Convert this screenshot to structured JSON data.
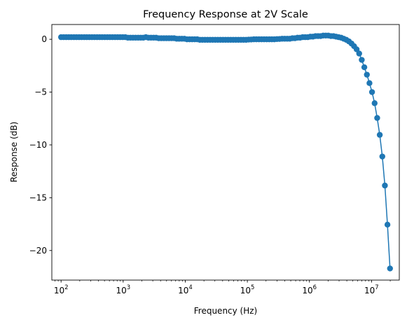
{
  "chart_data": {
    "type": "line",
    "title": "Frequency Response at 2V Scale",
    "xlabel": "Frequency (Hz)",
    "ylabel": "Response (dB)",
    "xscale": "log",
    "xlim": [
      71,
      28000000
    ],
    "ylim": [
      -22.8,
      1.4
    ],
    "xticks": [
      {
        "value": 100,
        "label_base": "10",
        "label_exp": "2"
      },
      {
        "value": 1000,
        "label_base": "10",
        "label_exp": "3"
      },
      {
        "value": 10000,
        "label_base": "10",
        "label_exp": "4"
      },
      {
        "value": 100000,
        "label_base": "10",
        "label_exp": "5"
      },
      {
        "value": 1000000,
        "label_base": "10",
        "label_exp": "6"
      },
      {
        "value": 10000000,
        "label_base": "10",
        "label_exp": "7"
      }
    ],
    "yticks": [
      {
        "value": 0,
        "label": "0"
      },
      {
        "value": -5,
        "label": "−5"
      },
      {
        "value": -10,
        "label": "−10"
      },
      {
        "value": -15,
        "label": "−15"
      },
      {
        "value": -20,
        "label": "−20"
      }
    ],
    "grid": false,
    "colors": {
      "series": "#1f77b4"
    },
    "series": [
      {
        "marker": "circle",
        "points": [
          [
            100,
            0.2
          ],
          [
            110,
            0.2
          ],
          [
            121,
            0.2
          ],
          [
            133,
            0.2
          ],
          [
            146,
            0.2
          ],
          [
            161,
            0.2
          ],
          [
            177,
            0.2
          ],
          [
            195,
            0.2
          ],
          [
            214,
            0.2
          ],
          [
            236,
            0.2
          ],
          [
            259,
            0.2
          ],
          [
            285,
            0.2
          ],
          [
            314,
            0.2
          ],
          [
            345,
            0.2
          ],
          [
            380,
            0.2
          ],
          [
            418,
            0.2
          ],
          [
            459,
            0.2
          ],
          [
            505,
            0.2
          ],
          [
            556,
            0.2
          ],
          [
            611,
            0.2
          ],
          [
            672,
            0.2
          ],
          [
            740,
            0.2
          ],
          [
            814,
            0.2
          ],
          [
            895,
            0.2
          ],
          [
            984,
            0.2
          ],
          [
            1083,
            0.2
          ],
          [
            1191,
            0.15
          ],
          [
            1310,
            0.15
          ],
          [
            1441,
            0.15
          ],
          [
            1585,
            0.15
          ],
          [
            1744,
            0.15
          ],
          [
            1918,
            0.15
          ],
          [
            2110,
            0.15
          ],
          [
            2321,
            0.2
          ],
          [
            2553,
            0.15
          ],
          [
            2808,
            0.15
          ],
          [
            3089,
            0.15
          ],
          [
            3398,
            0.15
          ],
          [
            3738,
            0.1
          ],
          [
            4111,
            0.1
          ],
          [
            4522,
            0.1
          ],
          [
            4975,
            0.1
          ],
          [
            5472,
            0.1
          ],
          [
            6019,
            0.1
          ],
          [
            6621,
            0.1
          ],
          [
            7284,
            0.05
          ],
          [
            8012,
            0.05
          ],
          [
            8813,
            0.05
          ],
          [
            9694,
            0.05
          ],
          [
            10664,
            0.0
          ],
          [
            11730,
            0.0
          ],
          [
            12903,
            0.0
          ],
          [
            14193,
            0.0
          ],
          [
            15613,
            0.0
          ],
          [
            17174,
            -0.05
          ],
          [
            18891,
            -0.05
          ],
          [
            20780,
            -0.05
          ],
          [
            22858,
            -0.05
          ],
          [
            25144,
            -0.05
          ],
          [
            27659,
            -0.05
          ],
          [
            30425,
            -0.05
          ],
          [
            33467,
            -0.05
          ],
          [
            36814,
            -0.05
          ],
          [
            40495,
            -0.05
          ],
          [
            44545,
            -0.05
          ],
          [
            49000,
            -0.05
          ],
          [
            53900,
            -0.05
          ],
          [
            59290,
            -0.05
          ],
          [
            65219,
            -0.05
          ],
          [
            71740,
            -0.05
          ],
          [
            78914,
            -0.05
          ],
          [
            86806,
            -0.05
          ],
          [
            95486,
            -0.05
          ],
          [
            105035,
            -0.03
          ],
          [
            115538,
            -0.02
          ],
          [
            127092,
            0.0
          ],
          [
            139801,
            0.0
          ],
          [
            153781,
            0.0
          ],
          [
            169160,
            0.0
          ],
          [
            186076,
            0.0
          ],
          [
            204683,
            0.0
          ],
          [
            225152,
            0.0
          ],
          [
            247667,
            0.0
          ],
          [
            272434,
            0.0
          ],
          [
            299677,
            0.02
          ],
          [
            329645,
            0.03
          ],
          [
            362609,
            0.05
          ],
          [
            398870,
            0.05
          ],
          [
            438757,
            0.05
          ],
          [
            482633,
            0.05
          ],
          [
            530896,
            0.1
          ],
          [
            583986,
            0.1
          ],
          [
            642384,
            0.15
          ],
          [
            706623,
            0.15
          ],
          [
            777285,
            0.2
          ],
          [
            855013,
            0.2
          ],
          [
            940515,
            0.2
          ],
          [
            1034566,
            0.25
          ],
          [
            1138023,
            0.25
          ],
          [
            1251825,
            0.3
          ],
          [
            1377008,
            0.3
          ],
          [
            1514709,
            0.3
          ],
          [
            1666180,
            0.35
          ],
          [
            1832798,
            0.35
          ],
          [
            2016078,
            0.35
          ],
          [
            2217686,
            0.3
          ],
          [
            2439454,
            0.3
          ],
          [
            2683400,
            0.25
          ],
          [
            2951740,
            0.2
          ],
          [
            3246914,
            0.15
          ],
          [
            3571605,
            0.05
          ],
          [
            3928766,
            -0.05
          ],
          [
            4321642,
            -0.2
          ],
          [
            4753807,
            -0.4
          ],
          [
            5229188,
            -0.65
          ],
          [
            5752106,
            -0.95
          ],
          [
            6327317,
            -1.35
          ],
          [
            6960049,
            -1.95
          ],
          [
            7656054,
            -2.65
          ],
          [
            8421659,
            -3.35
          ],
          [
            9263825,
            -4.15
          ],
          [
            10190208,
            -5.0
          ],
          [
            11209228,
            -6.05
          ],
          [
            12330151,
            -7.45
          ],
          [
            13563166,
            -9.05
          ],
          [
            14919483,
            -11.1
          ],
          [
            16411431,
            -13.85
          ],
          [
            18052574,
            -17.55
          ],
          [
            19857831,
            -21.7
          ]
        ]
      }
    ]
  }
}
